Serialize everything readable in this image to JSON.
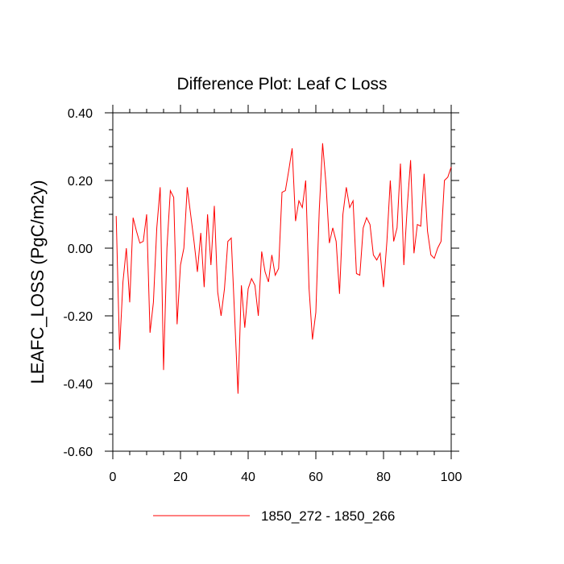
{
  "chart_data": {
    "type": "line",
    "title": "Difference Plot: Leaf C Loss",
    "xlabel": "",
    "ylabel": "LEAFC_LOSS  (PgC/m2y)",
    "xlim": [
      0,
      100
    ],
    "ylim": [
      -0.6,
      0.4
    ],
    "xticks": [
      0,
      20,
      40,
      60,
      80,
      100
    ],
    "xtick_labels": [
      "0",
      "20",
      "40",
      "60",
      "80",
      "100"
    ],
    "yticks": [
      0.4,
      0.2,
      0.0,
      -0.2,
      -0.4,
      -0.6
    ],
    "ytick_labels": [
      "0.40",
      "0.20",
      "0.00",
      "-0.20",
      "-0.40",
      "-0.60"
    ],
    "series": [
      {
        "name": "1850_272 - 1850_266",
        "color": "#ff0000",
        "x": [
          1,
          2,
          3,
          4,
          5,
          6,
          7,
          8,
          9,
          10,
          11,
          12,
          13,
          14,
          15,
          16,
          17,
          18,
          19,
          20,
          21,
          22,
          23,
          24,
          25,
          26,
          27,
          28,
          29,
          30,
          31,
          32,
          33,
          34,
          35,
          36,
          37,
          38,
          39,
          40,
          41,
          42,
          43,
          44,
          45,
          46,
          47,
          48,
          49,
          50,
          51,
          52,
          53,
          54,
          55,
          56,
          57,
          58,
          59,
          60,
          61,
          62,
          63,
          64,
          65,
          66,
          67,
          68,
          69,
          70,
          71,
          72,
          73,
          74,
          75,
          76,
          77,
          78,
          79,
          80,
          81,
          82,
          83,
          84,
          85,
          86,
          87,
          88,
          89,
          90,
          91,
          92,
          93,
          94,
          95,
          96,
          97,
          98,
          99,
          100
        ],
        "values": [
          0.095,
          -0.3,
          -0.1,
          0.0,
          -0.16,
          0.09,
          0.05,
          0.015,
          0.02,
          0.1,
          -0.25,
          -0.16,
          0.06,
          0.18,
          -0.36,
          0.0,
          0.17,
          0.15,
          -0.225,
          -0.05,
          0.0,
          0.18,
          0.1,
          0.02,
          -0.07,
          0.045,
          -0.115,
          0.1,
          -0.05,
          0.125,
          -0.13,
          -0.2,
          -0.12,
          0.02,
          0.03,
          -0.2,
          -0.43,
          -0.11,
          -0.235,
          -0.12,
          -0.09,
          -0.11,
          -0.2,
          -0.01,
          -0.07,
          -0.1,
          -0.02,
          -0.08,
          -0.06,
          0.165,
          0.17,
          0.23,
          0.295,
          0.08,
          0.14,
          0.12,
          0.2,
          -0.12,
          -0.27,
          -0.19,
          0.11,
          0.31,
          0.19,
          0.015,
          0.06,
          0.02,
          -0.135,
          0.1,
          0.18,
          0.12,
          0.14,
          -0.075,
          -0.08,
          0.06,
          0.09,
          0.07,
          -0.02,
          -0.035,
          -0.015,
          -0.115,
          0.02,
          0.2,
          0.02,
          0.06,
          0.25,
          -0.05,
          0.12,
          0.26,
          -0.015,
          0.07,
          0.065,
          0.22,
          0.05,
          -0.02,
          -0.03,
          0.0,
          0.02,
          0.2,
          0.21,
          0.24
        ]
      }
    ],
    "legend": {
      "position": "bottom-center",
      "label": "1850_272 - 1850_266"
    }
  }
}
